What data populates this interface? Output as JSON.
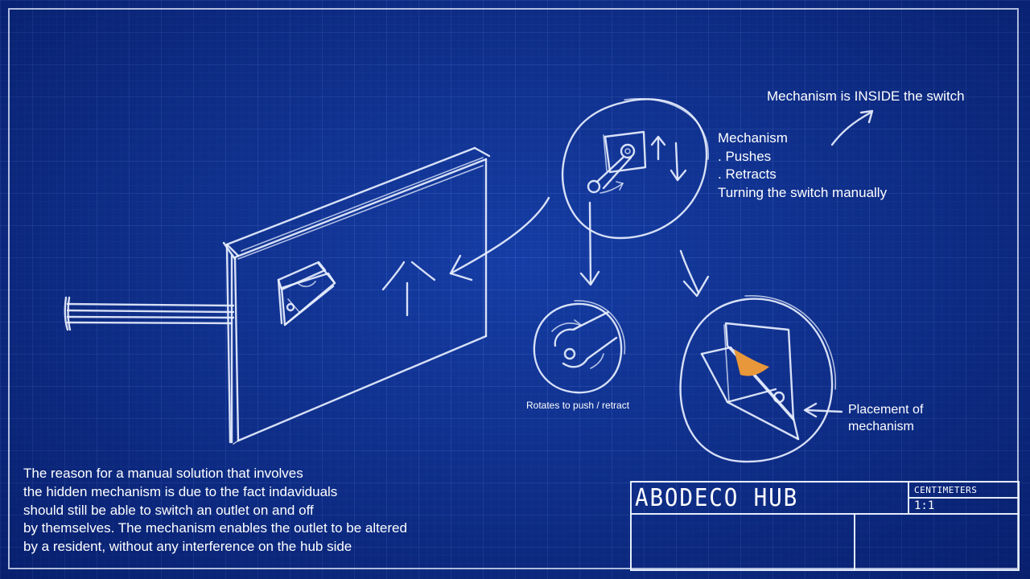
{
  "annotations": {
    "inside_note": "Mechanism is INSIDE the switch",
    "mechanism_title": "Mechanism",
    "mechanism_lines": [
      ". Pushes",
      ". Retracts",
      "Turning the switch manually"
    ],
    "rotates_caption": "Rotates to push / retract",
    "placement_line1": "Placement of",
    "placement_line2": "mechanism"
  },
  "reason_lines": [
    "The reason for a manual solution that involves",
    "the hidden mechanism is due to the fact indaviduals",
    "should still be able to switch an outlet on and off",
    "by themselves. The mechanism enables the outlet to be altered",
    "by a resident, without any interference on the hub side"
  ],
  "title_block": {
    "name": "ABODECO HUB",
    "units": "CENTIMETERS",
    "scale": "1:1"
  },
  "colors": {
    "background": "#0b2d91",
    "line": "#e8efff",
    "highlight": "#e8973a"
  }
}
